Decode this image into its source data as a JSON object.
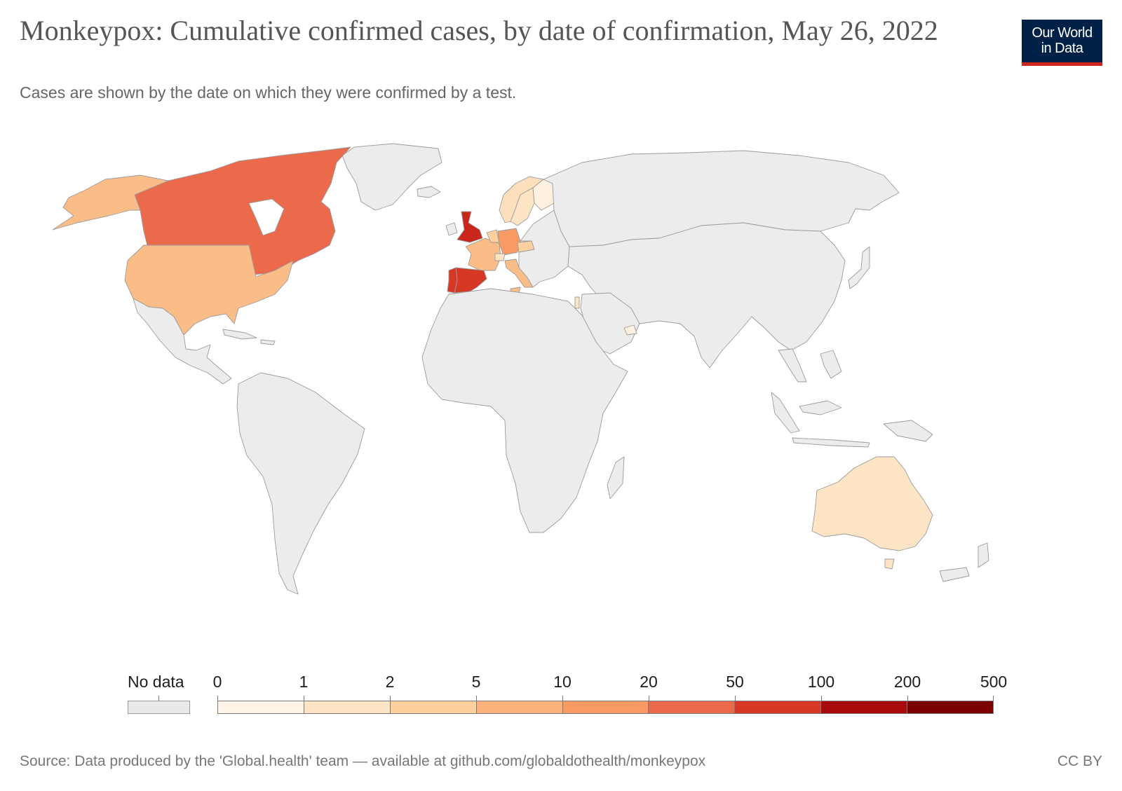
{
  "header": {
    "title": "Monkeypox: Cumulative confirmed cases, by date of confirmation, May 26, 2022",
    "subtitle": "Cases are shown by the date on which they were confirmed by a test."
  },
  "logo": {
    "line1": "Our World",
    "line2": "in Data"
  },
  "map_data": {
    "type": "choropleth",
    "metric": "Cumulative confirmed cases",
    "date": "May 26, 2022",
    "no_data_color": "#ececec",
    "regions": [
      {
        "name": "Canada",
        "bin": "20–50",
        "color": "#ec6a4c"
      },
      {
        "name": "United States",
        "bin": "5–10",
        "color": "#fbbd88"
      },
      {
        "name": "Mexico",
        "bin": "No data",
        "color": "#ececec"
      },
      {
        "name": "United Kingdom",
        "bin": "50–100",
        "color": "#c9271c"
      },
      {
        "name": "Spain",
        "bin": "50–100",
        "color": "#d63824"
      },
      {
        "name": "Portugal",
        "bin": "50–100",
        "color": "#d63824"
      },
      {
        "name": "France",
        "bin": "5–10",
        "color": "#fbbd88"
      },
      {
        "name": "Germany",
        "bin": "10–20",
        "color": "#f79a63"
      },
      {
        "name": "Italy",
        "bin": "5–10",
        "color": "#fbbd88"
      },
      {
        "name": "Sweden",
        "bin": "1–2",
        "color": "#fddfbc"
      },
      {
        "name": "Norway",
        "bin": "1–2",
        "color": "#fddfbc"
      },
      {
        "name": "Finland",
        "bin": "0–1",
        "color": "#fff0e0"
      },
      {
        "name": "Australia",
        "bin": "1–2",
        "color": "#fde4c5"
      }
    ]
  },
  "legend": {
    "no_data_label": "No data",
    "no_data_color": "#ececec",
    "ticks": [
      "0",
      "1",
      "2",
      "5",
      "10",
      "20",
      "50",
      "100",
      "200",
      "500"
    ],
    "bin_colors": [
      "#fff4e7",
      "#fde4c5",
      "#fdd09d",
      "#fbb27b",
      "#f79a63",
      "#ec6a4c",
      "#d63824",
      "#a80b0b",
      "#7a0000"
    ]
  },
  "footer": {
    "source": "Source: Data produced by the 'Global.health' team — available at github.com/globaldothealth/monkeypox",
    "license": "CC BY"
  }
}
